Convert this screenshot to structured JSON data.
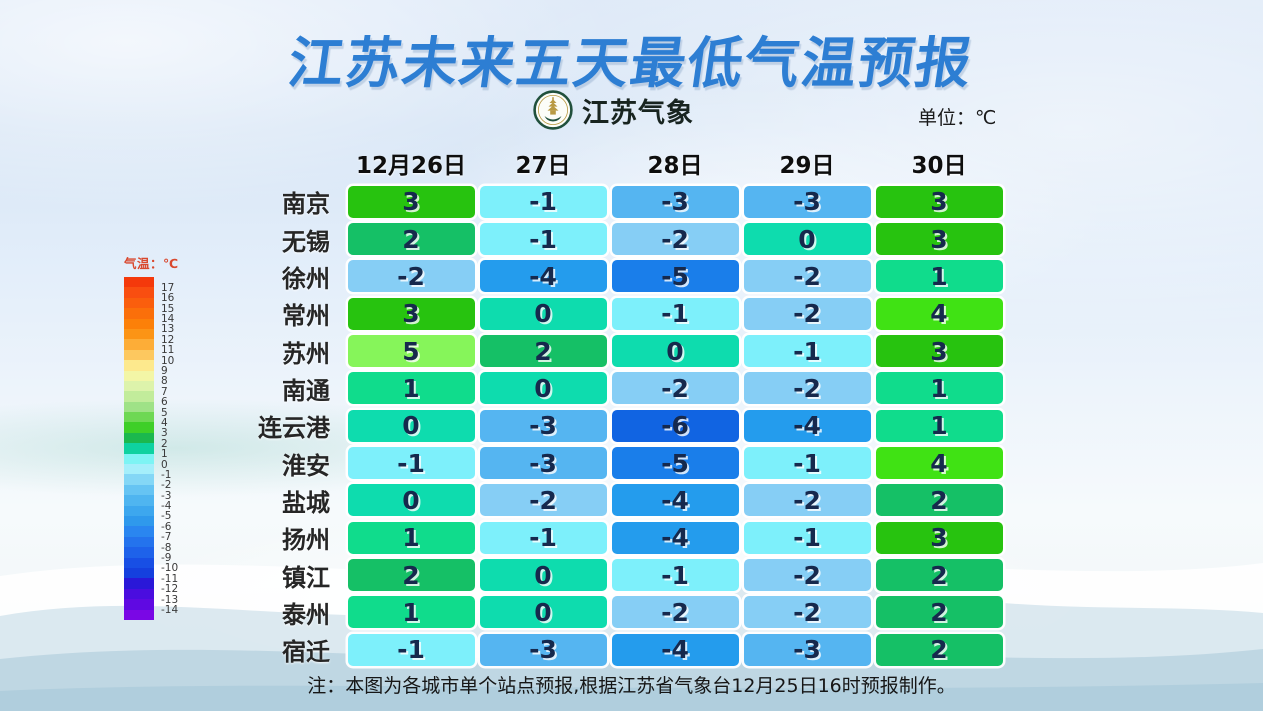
{
  "title": "江苏未来五天最低气温预报",
  "brand": {
    "name": "江苏气象",
    "emblem_icon": "jiangsu-meteorology-emblem"
  },
  "unit": "单位：℃",
  "note": "注：本图为各城市单个站点预报,根据江苏省气象台12月25日16时预报制作。",
  "colors": {
    "title_blue": "#2d7ed3",
    "cell_text_navy": "#16294d",
    "legend_title_red": "#d9482e"
  },
  "chart_data": {
    "type": "heatmap",
    "title": "江苏未来五天最低气温预报",
    "unit": "℃",
    "columns": [
      "12月26日",
      "27日",
      "28日",
      "29日",
      "30日"
    ],
    "rows": [
      {
        "city": "南京",
        "values": [
          3,
          -1,
          -3,
          -3,
          3
        ]
      },
      {
        "city": "无锡",
        "values": [
          2,
          -1,
          -2,
          0,
          3
        ]
      },
      {
        "city": "徐州",
        "values": [
          -2,
          -4,
          -5,
          -2,
          1
        ]
      },
      {
        "city": "常州",
        "values": [
          3,
          0,
          -1,
          -2,
          4
        ]
      },
      {
        "city": "苏州",
        "values": [
          5,
          2,
          0,
          -1,
          3
        ]
      },
      {
        "city": "南通",
        "values": [
          1,
          0,
          -2,
          -2,
          1
        ]
      },
      {
        "city": "连云港",
        "values": [
          0,
          -3,
          -6,
          -4,
          1
        ]
      },
      {
        "city": "淮安",
        "values": [
          -1,
          -3,
          -5,
          -1,
          4
        ]
      },
      {
        "city": "盐城",
        "values": [
          0,
          -2,
          -4,
          -2,
          2
        ]
      },
      {
        "city": "扬州",
        "values": [
          1,
          -1,
          -4,
          -1,
          3
        ]
      },
      {
        "city": "镇江",
        "values": [
          2,
          0,
          -1,
          -2,
          2
        ]
      },
      {
        "city": "泰州",
        "values": [
          1,
          0,
          -2,
          -2,
          2
        ]
      },
      {
        "city": "宿迁",
        "values": [
          -1,
          -3,
          -4,
          -3,
          2
        ]
      }
    ],
    "value_colors": {
      "5": "#86f55a",
      "4": "#40e214",
      "3": "#27c30f",
      "2": "#15c066",
      "1": "#10dc8c",
      "0": "#0edcae",
      "-1": "#7df0fb",
      "-2": "#86cef5",
      "-3": "#55b5f1",
      "-4": "#249ced",
      "-5": "#1a7eea",
      "-6": "#1164e2"
    },
    "legend": {
      "title": "气温：℃",
      "position": "left",
      "labels": [
        17,
        16,
        15,
        14,
        13,
        12,
        11,
        10,
        9,
        8,
        7,
        6,
        5,
        4,
        3,
        2,
        1,
        0,
        -1,
        -2,
        -3,
        -4,
        -5,
        -6,
        -7,
        -8,
        -9,
        -10,
        -11,
        -12,
        -13,
        -14
      ],
      "colors": [
        "#f4390b",
        "#f94e10",
        "#fa5e0d",
        "#fb6f0a",
        "#fc8008",
        "#fc9415",
        "#fdad37",
        "#fdc85f",
        "#fde98d",
        "#f3f6a6",
        "#ddf3ab",
        "#c2ec9b",
        "#9fe287",
        "#6ed854",
        "#3ecf28",
        "#1bb84e",
        "#0ed2a0",
        "#7df4f4",
        "#a5effb",
        "#84d7f6",
        "#66c4f3",
        "#4fb5f0",
        "#3da7ee",
        "#2f99ec",
        "#2a86f0",
        "#2473ed",
        "#1e62ea",
        "#184fe5",
        "#1540de",
        "#2a18d8",
        "#4a0ddf",
        "#5f09e2",
        "#7a07e5"
      ]
    }
  }
}
